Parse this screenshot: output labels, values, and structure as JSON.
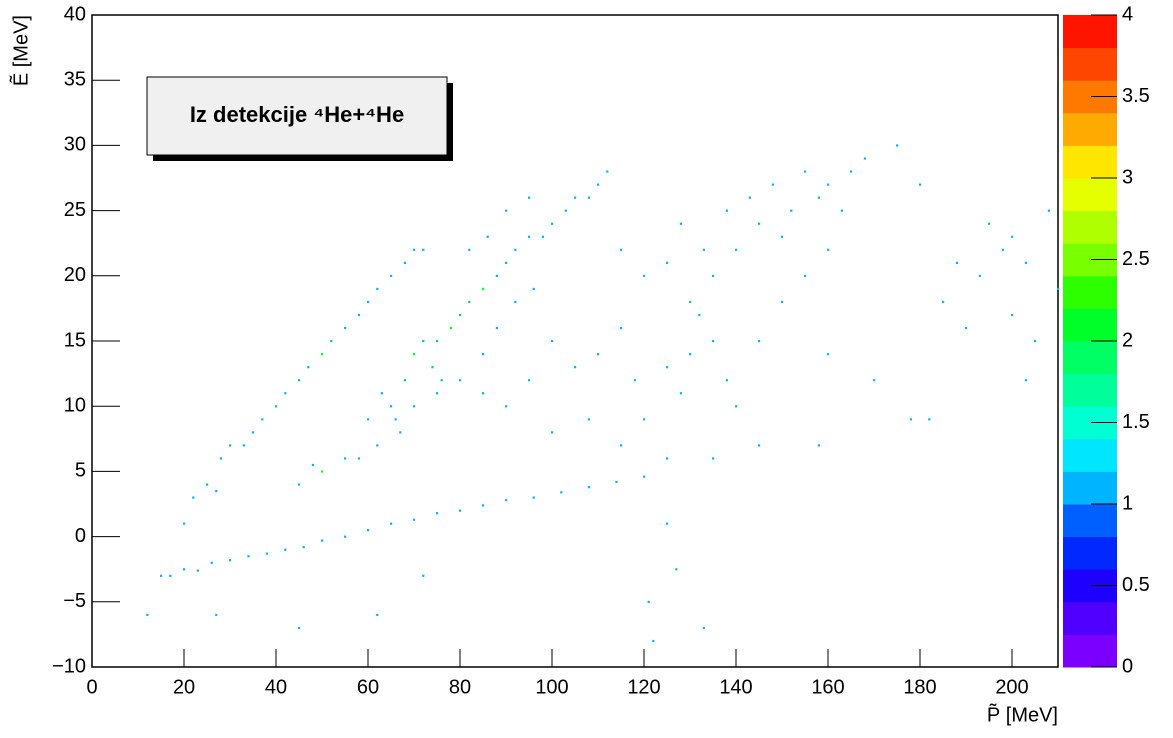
{
  "chart_data": {
    "type": "scatter",
    "label": "Iz detekcije ⁴He+⁴He",
    "x_label": "P̃ [MeV]",
    "y_label": "Ẽ [MeV]",
    "xlim": [
      0,
      210
    ],
    "xticks": [
      0,
      20,
      40,
      60,
      80,
      100,
      120,
      140,
      160,
      180,
      200
    ],
    "ylim": [
      -10,
      40
    ],
    "yticks": [
      {
        "value": -10,
        "label": "−10"
      },
      {
        "value": -5,
        "label": "−5"
      },
      0,
      5,
      10,
      15,
      20,
      25,
      30,
      35,
      40
    ],
    "zlim": [
      0,
      4
    ],
    "zticks": [
      0,
      0.5,
      1,
      1.5,
      2,
      2.5,
      3,
      3.5,
      4
    ],
    "palette": [
      "#7b00ff",
      "#5000ff",
      "#1e00ff",
      "#0028ff",
      "#0060ff",
      "#00b4ff",
      "#00e6ff",
      "#00ffd2",
      "#00ff9b",
      "#00ff64",
      "#00ff28",
      "#2dff00",
      "#78ff00",
      "#afff00",
      "#e6ff00",
      "#ffe600",
      "#ffaa00",
      "#ff7800",
      "#ff4600",
      "#ff1400"
    ],
    "x": [
      12,
      15,
      17,
      20,
      23,
      26,
      30,
      34,
      38,
      42,
      46,
      50,
      55,
      60,
      65,
      70,
      75,
      80,
      85,
      90,
      96,
      102,
      108,
      114,
      120,
      20,
      22,
      25,
      27,
      28,
      30,
      33,
      35,
      37,
      40,
      42,
      45,
      47,
      50,
      52,
      55,
      58,
      60,
      62,
      65,
      68,
      70,
      72,
      75,
      78,
      80,
      82,
      85,
      88,
      90,
      92,
      95,
      98,
      100,
      103,
      105,
      108,
      110,
      112,
      70,
      72,
      74,
      76,
      68,
      65,
      70,
      66,
      62,
      58,
      55,
      50,
      48,
      45,
      60,
      63,
      67,
      75,
      80,
      85,
      90,
      95,
      85,
      88,
      92,
      96,
      82,
      86,
      90,
      95,
      100,
      105,
      110,
      115,
      118,
      120,
      125,
      128,
      130,
      132,
      135,
      138,
      140,
      100,
      108,
      115,
      125,
      135,
      145,
      115,
      120,
      125,
      128,
      130,
      133,
      135,
      138,
      140,
      143,
      145,
      148,
      150,
      152,
      155,
      158,
      160,
      163,
      165,
      168,
      150,
      155,
      145,
      160,
      175,
      180,
      160,
      158,
      170,
      178,
      182,
      185,
      188,
      190,
      193,
      195,
      198,
      200,
      203,
      205,
      208,
      210,
      203,
      200,
      27,
      45,
      62,
      72,
      121,
      122,
      133,
      127,
      125
    ],
    "y": [
      -6,
      -3,
      -3,
      -2.5,
      -2.6,
      -2,
      -1.8,
      -1.5,
      -1.3,
      -1,
      -0.8,
      -0.3,
      0,
      0.5,
      1,
      1.3,
      1.8,
      2,
      2.4,
      2.8,
      3,
      3.4,
      3.8,
      4.2,
      4.6,
      1,
      3,
      4,
      3.5,
      6,
      7,
      7,
      8,
      9,
      10,
      11,
      12,
      13,
      14,
      15,
      16,
      17,
      18,
      19,
      20,
      21,
      22,
      22,
      15,
      16,
      17,
      18,
      19,
      20,
      21,
      22,
      23,
      23,
      24,
      25,
      26,
      26,
      27,
      28,
      14,
      15,
      13,
      12,
      12,
      10,
      10,
      9,
      7,
      6,
      6,
      5,
      5.5,
      4,
      9,
      11,
      8,
      11,
      12,
      11,
      10,
      12,
      14,
      16,
      18,
      19,
      22,
      23,
      25,
      26,
      15,
      13,
      14,
      16,
      12,
      9,
      13,
      11,
      14,
      17,
      15,
      12,
      10,
      8,
      9,
      7,
      6,
      6,
      7,
      22,
      20,
      21,
      24,
      18,
      22,
      20,
      25,
      22,
      26,
      24,
      27,
      23,
      25,
      28,
      26,
      27,
      25,
      28,
      29,
      18,
      20,
      15,
      22,
      30,
      27,
      14,
      7,
      12,
      9,
      9,
      18,
      21,
      16,
      20,
      24,
      22,
      17,
      21,
      15,
      25,
      19,
      12,
      23,
      -6,
      -7,
      -6,
      -3,
      -5,
      -8,
      -7,
      -2.5,
      1
    ],
    "z": [
      1,
      1,
      1,
      1,
      1,
      1,
      1,
      1,
      1,
      1,
      1,
      1,
      1,
      1,
      1,
      1,
      1,
      1,
      1,
      1,
      1,
      1,
      1,
      1,
      1,
      1,
      1,
      1,
      1,
      1,
      1,
      1,
      1,
      1,
      1,
      1,
      1,
      1,
      2,
      1,
      1,
      1,
      1,
      1,
      1,
      1,
      1,
      1,
      1,
      2,
      1,
      1,
      2,
      1,
      1,
      1,
      1,
      1,
      1,
      1,
      1,
      1,
      1,
      1,
      2,
      1,
      1,
      1,
      1,
      1,
      1,
      1,
      1,
      1,
      1,
      2,
      1,
      1,
      1,
      1,
      1,
      1,
      1,
      1,
      1,
      1,
      1,
      1,
      1,
      1,
      1,
      1,
      1,
      1,
      1,
      1,
      1,
      1,
      1,
      1,
      1,
      1,
      1,
      1,
      1,
      1,
      1,
      1,
      1,
      1,
      1,
      1,
      1,
      1,
      1,
      1,
      1,
      1,
      1,
      1,
      1,
      1,
      1,
      1,
      1,
      1,
      1,
      1,
      1,
      1,
      1,
      1,
      1,
      1,
      1,
      1,
      1,
      1,
      1,
      1,
      1,
      1,
      1,
      1,
      1,
      1,
      1,
      1,
      1,
      1,
      1,
      1,
      1,
      1,
      1,
      1,
      1,
      1,
      1,
      1,
      1,
      1,
      1,
      1,
      1,
      1
    ]
  }
}
